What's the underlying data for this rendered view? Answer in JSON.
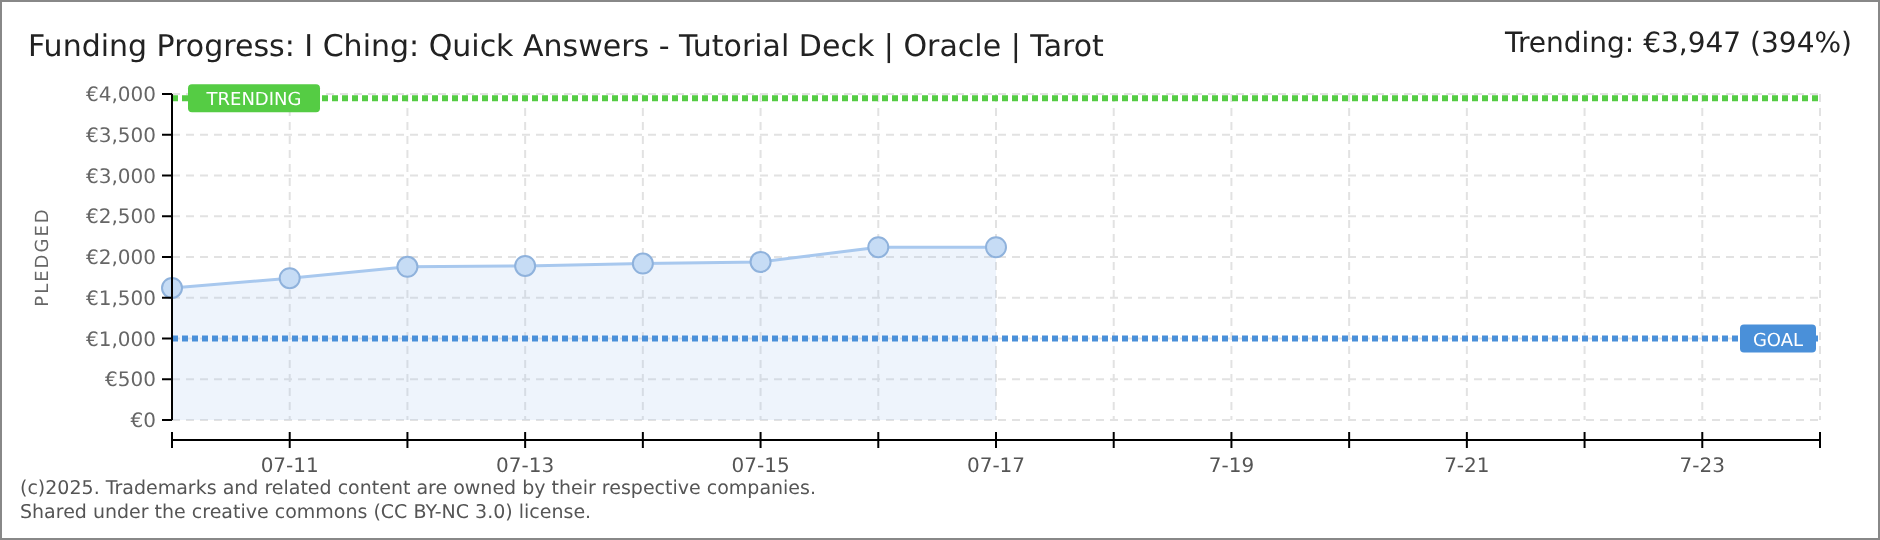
{
  "chart_data": {
    "type": "area",
    "title": "Funding Progress: I Ching: Quick Answers - Tutorial Deck | Oracle | Tarot",
    "ylabel": "PLEDGED",
    "annotations": [
      "Trending: €3,947 (394%)",
      "(c)2025. Trademarks and related content are owned by their respective companies.",
      "Shared under the creative commons (CC BY-NC 3.0) license."
    ],
    "x": [
      "--07-10",
      "--07-11",
      "--07-12",
      "--07-13",
      "--07-14",
      "--07-15",
      "--07-16",
      "--07-17"
    ],
    "series": [
      {
        "color": "#a8c8ee",
        "values": [
          1620,
          1740,
          1880,
          1890,
          1920,
          1940,
          2120,
          2120
        ]
      }
    ],
    "marker": "circle",
    "xlim": [
      "--07-10",
      "--07-24"
    ],
    "xticks": [
      {
        "value": "--07-10",
        "label": null
      },
      {
        "value": "--07-11",
        "label": "07-11"
      },
      {
        "value": "--07-12",
        "label": null
      },
      {
        "value": "--07-13",
        "label": "07-13"
      },
      {
        "value": "--07-14",
        "label": null
      },
      {
        "value": "--07-15",
        "label": "07-15"
      },
      {
        "value": "--07-16",
        "label": null
      },
      {
        "value": "--07-17",
        "label": "07-17"
      },
      {
        "value": "--07-18",
        "label": null
      },
      {
        "value": "--07-19",
        "label": "7-19"
      },
      {
        "value": "--07-20",
        "label": null
      },
      {
        "value": "--07-21",
        "label": "7-21"
      },
      {
        "value": "--07-22",
        "label": null
      },
      {
        "value": "--07-23",
        "label": "7-23"
      },
      {
        "value": "--07-24",
        "label": null
      }
    ],
    "ylim": [
      0,
      4000
    ],
    "yticks": [
      {
        "value": 0,
        "label": "€0"
      },
      {
        "value": 500,
        "label": "€500"
      },
      {
        "value": 1000,
        "label": "€1,000"
      },
      {
        "value": 1500,
        "label": "€1,500"
      },
      {
        "value": 2000,
        "label": "€2,000"
      },
      {
        "value": 2500,
        "label": "€2,500"
      },
      {
        "value": 3000,
        "label": "€3,000"
      },
      {
        "value": 3500,
        "label": "€3,500"
      },
      {
        "value": 4000,
        "label": "€4,000"
      }
    ],
    "grid": true,
    "ref_lines": [
      {
        "axis": "y",
        "value": 3947,
        "label": "TRENDING",
        "color": "#55cc44",
        "line_style": "dotted"
      },
      {
        "axis": "y",
        "value": 1000,
        "label": "GOAL",
        "color": "#4a90d9",
        "line_style": "dotted"
      }
    ]
  }
}
